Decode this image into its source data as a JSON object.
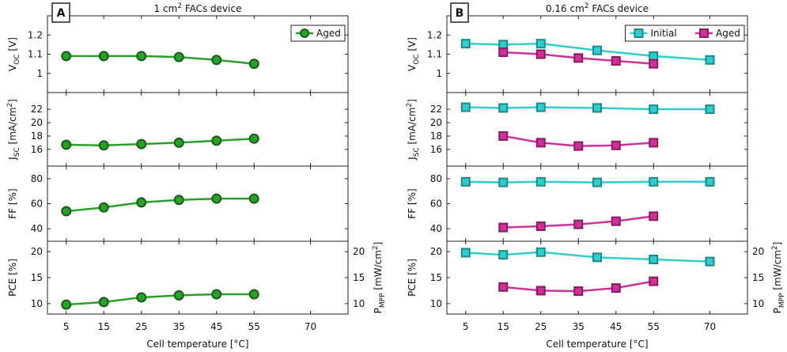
{
  "colors": {
    "aged": "#cc3399",
    "aged_edge": "#8a1a63",
    "initial": "#33cccc",
    "initial_edge": "#1a8a8a",
    "green": "#2aa02a",
    "green_edge": "#145f14"
  },
  "chart_data": [
    {
      "type": "line",
      "panel_letter": "A",
      "title_main": "1 cm",
      "title_sup": "2",
      "title_rest": " FACs device",
      "xlabel": "Cell temperature [°C]",
      "xlim": [
        0,
        80
      ],
      "xticks": [
        5,
        15,
        25,
        35,
        45,
        55,
        70
      ],
      "xticklabels": [
        "5",
        "15",
        "25",
        "35",
        "45",
        "55",
        "70"
      ],
      "subplots": [
        {
          "metric": "Voc",
          "ylabel_main": "V",
          "ylabel_sub": "OC",
          "ylabel_unit": " [V]",
          "ylim": [
            0.9,
            1.3
          ],
          "yticks": [
            1,
            1.1,
            1.2
          ],
          "yticklabels": [
            "1",
            "1.1",
            "1.2"
          ],
          "legend": [
            "Aged"
          ],
          "series": [
            {
              "name": "Aged",
              "color": "green",
              "marker": "circle",
              "x": [
                5,
                15,
                25,
                35,
                45,
                55
              ],
              "y": [
                1.09,
                1.09,
                1.09,
                1.085,
                1.07,
                1.05
              ]
            }
          ]
        },
        {
          "metric": "Jsc",
          "ylabel_main": "J",
          "ylabel_sub": "SC",
          "ylabel_unit": " [mA/cm",
          "ylabel_sup": "2",
          "ylabel_end": "]",
          "ylim": [
            13.5,
            24.5
          ],
          "yticks": [
            16,
            18,
            20,
            22
          ],
          "yticklabels": [
            "16",
            "18",
            "20",
            "22"
          ],
          "series": [
            {
              "name": "Aged",
              "color": "green",
              "marker": "circle",
              "x": [
                5,
                15,
                25,
                35,
                45,
                55
              ],
              "y": [
                16.7,
                16.6,
                16.8,
                17.0,
                17.3,
                17.6
              ]
            }
          ]
        },
        {
          "metric": "FF",
          "ylabel_main": "FF [%]",
          "ylim": [
            30,
            90
          ],
          "yticks": [
            40,
            60,
            80
          ],
          "yticklabels": [
            "40",
            "60",
            "80"
          ],
          "series": [
            {
              "name": "Aged",
              "color": "green",
              "marker": "circle",
              "x": [
                5,
                15,
                25,
                35,
                45,
                55
              ],
              "y": [
                54,
                57,
                61,
                63,
                64,
                64
              ]
            }
          ]
        },
        {
          "metric": "PCE",
          "ylabel_main": "PCE [%]",
          "ylim": [
            8,
            22
          ],
          "yticks": [
            10,
            15,
            20
          ],
          "yticklabels": [
            "10",
            "15",
            "20"
          ],
          "right_ylabel_main": "P",
          "right_ylabel_sub": "MPP",
          "right_ylabel_unit": " [mW/cm",
          "right_ylabel_sup": "2",
          "right_ylabel_end": "]",
          "right_yticks": [
            10,
            15,
            20
          ],
          "right_yticklabels": [
            "10",
            "15",
            "20"
          ],
          "series": [
            {
              "name": "Aged",
              "color": "green",
              "marker": "circle",
              "x": [
                5,
                15,
                25,
                35,
                45,
                55
              ],
              "y": [
                9.8,
                10.3,
                11.2,
                11.6,
                11.8,
                11.8
              ]
            }
          ]
        }
      ]
    },
    {
      "type": "line",
      "panel_letter": "B",
      "title_main": "0.16 cm",
      "title_sup": "2",
      "title_rest": " FACs device",
      "xlabel": "Cell temperature [°C]",
      "xlim": [
        0,
        80
      ],
      "xticks": [
        5,
        15,
        25,
        35,
        45,
        55,
        70
      ],
      "xticklabels": [
        "5",
        "15",
        "25",
        "35",
        "45",
        "55",
        "70"
      ],
      "subplots": [
        {
          "metric": "Voc",
          "ylabel_main": "V",
          "ylabel_sub": "OC",
          "ylabel_unit": " [V]",
          "ylim": [
            0.9,
            1.3
          ],
          "yticks": [
            1,
            1.1,
            1.2
          ],
          "yticklabels": [
            "1",
            "1.1",
            "1.2"
          ],
          "legend": [
            "Initial",
            "Aged"
          ],
          "series": [
            {
              "name": "Initial",
              "color": "initial",
              "marker": "square",
              "x": [
                5,
                15,
                25,
                40,
                55,
                70
              ],
              "y": [
                1.155,
                1.15,
                1.155,
                1.12,
                1.09,
                1.07
              ]
            },
            {
              "name": "Aged",
              "color": "aged",
              "marker": "square",
              "x": [
                15,
                25,
                35,
                45,
                55
              ],
              "y": [
                1.11,
                1.1,
                1.08,
                1.065,
                1.05
              ]
            }
          ]
        },
        {
          "metric": "Jsc",
          "ylabel_main": "J",
          "ylabel_sub": "SC",
          "ylabel_unit": " [mA/cm",
          "ylabel_sup": "2",
          "ylabel_end": "]",
          "ylim": [
            13.5,
            24.5
          ],
          "yticks": [
            16,
            18,
            20,
            22
          ],
          "yticklabels": [
            "16",
            "18",
            "20",
            "22"
          ],
          "series": [
            {
              "name": "Initial",
              "color": "initial",
              "marker": "square",
              "x": [
                5,
                15,
                25,
                40,
                55,
                70
              ],
              "y": [
                22.3,
                22.2,
                22.3,
                22.2,
                22.0,
                22.0
              ]
            },
            {
              "name": "Aged",
              "color": "aged",
              "marker": "square",
              "x": [
                15,
                25,
                35,
                45,
                55
              ],
              "y": [
                18.0,
                17.0,
                16.5,
                16.6,
                17.0
              ]
            }
          ]
        },
        {
          "metric": "FF",
          "ylabel_main": "FF [%]",
          "ylim": [
            30,
            90
          ],
          "yticks": [
            40,
            60,
            80
          ],
          "yticklabels": [
            "40",
            "60",
            "80"
          ],
          "series": [
            {
              "name": "Initial",
              "color": "initial",
              "marker": "square",
              "x": [
                5,
                15,
                25,
                40,
                55,
                70
              ],
              "y": [
                77.5,
                77,
                77.5,
                77,
                77.5,
                77.5
              ]
            },
            {
              "name": "Aged",
              "color": "aged",
              "marker": "square",
              "x": [
                15,
                25,
                35,
                45,
                55
              ],
              "y": [
                41,
                42,
                43.5,
                46,
                50
              ]
            }
          ]
        },
        {
          "metric": "PCE",
          "ylabel_main": "PCE [%]",
          "ylim": [
            8,
            22
          ],
          "yticks": [
            10,
            15,
            20
          ],
          "yticklabels": [
            "10",
            "15",
            "20"
          ],
          "right_ylabel_main": "P",
          "right_ylabel_sub": "MPP",
          "right_ylabel_unit": " [mW/cm",
          "right_ylabel_sup": "2",
          "right_ylabel_end": "]",
          "right_yticks": [
            10,
            15,
            20
          ],
          "right_yticklabels": [
            "10",
            "15",
            "20"
          ],
          "series": [
            {
              "name": "Initial",
              "color": "initial",
              "marker": "square",
              "x": [
                5,
                15,
                25,
                40,
                55,
                70
              ],
              "y": [
                19.8,
                19.4,
                19.9,
                18.9,
                18.5,
                18.1
              ]
            },
            {
              "name": "Aged",
              "color": "aged",
              "marker": "square",
              "x": [
                15,
                25,
                35,
                45,
                55
              ],
              "y": [
                13.2,
                12.5,
                12.4,
                13.0,
                14.3
              ]
            }
          ]
        }
      ]
    }
  ]
}
